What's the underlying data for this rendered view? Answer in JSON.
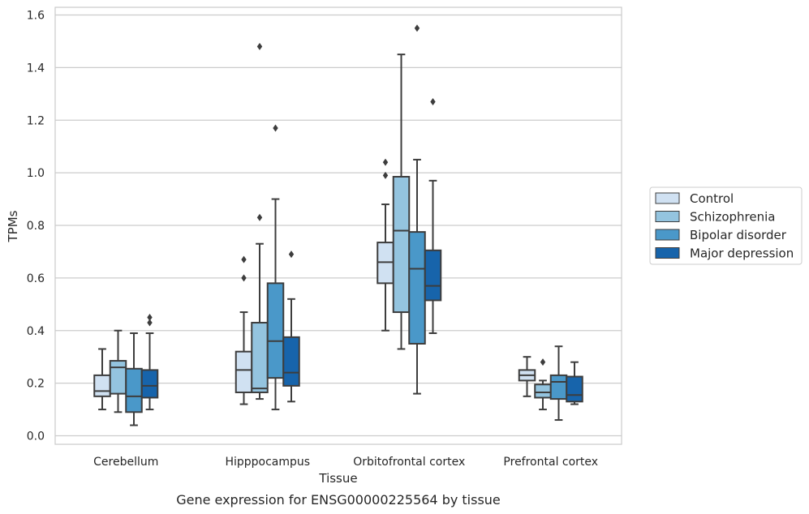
{
  "chart_data": {
    "type": "box",
    "xlabel": "Tissue",
    "ylabel": "TPMs",
    "caption": "Gene expression for ENSG00000225564 by tissue",
    "ylim": [
      -0.03,
      1.63
    ],
    "yticks": [
      "0.0",
      "0.2",
      "0.4",
      "0.6",
      "0.8",
      "1.0",
      "1.2",
      "1.4",
      "1.6"
    ],
    "grid": "horizontal",
    "legend_position": "right",
    "categories": [
      "Cerebellum",
      "Hipppocampus",
      "Orbitofrontal cortex",
      "Prefrontal cortex"
    ],
    "series": [
      {
        "name": "Control",
        "color": "#d0e1f2",
        "boxes": [
          {
            "whislo": 0.1,
            "q1": 0.15,
            "med": 0.17,
            "q3": 0.23,
            "whishi": 0.33,
            "fliers": []
          },
          {
            "whislo": 0.12,
            "q1": 0.165,
            "med": 0.25,
            "q3": 0.32,
            "whishi": 0.47,
            "fliers": [
              0.6,
              0.67
            ]
          },
          {
            "whislo": 0.4,
            "q1": 0.58,
            "med": 0.66,
            "q3": 0.735,
            "whishi": 0.88,
            "fliers": [
              0.99,
              1.04
            ]
          },
          {
            "whislo": 0.15,
            "q1": 0.21,
            "med": 0.23,
            "q3": 0.25,
            "whishi": 0.3,
            "fliers": []
          }
        ]
      },
      {
        "name": "Schizophrenia",
        "color": "#94c4df",
        "boxes": [
          {
            "whislo": 0.09,
            "q1": 0.16,
            "med": 0.26,
            "q3": 0.285,
            "whishi": 0.4,
            "fliers": []
          },
          {
            "whislo": 0.14,
            "q1": 0.165,
            "med": 0.18,
            "q3": 0.43,
            "whishi": 0.73,
            "fliers": [
              0.83,
              1.48
            ]
          },
          {
            "whislo": 0.33,
            "q1": 0.47,
            "med": 0.78,
            "q3": 0.985,
            "whishi": 1.45,
            "fliers": []
          },
          {
            "whislo": 0.1,
            "q1": 0.145,
            "med": 0.165,
            "q3": 0.195,
            "whishi": 0.21,
            "fliers": [
              0.28
            ]
          }
        ]
      },
      {
        "name": "Bipolar disorder",
        "color": "#4a98c9",
        "boxes": [
          {
            "whislo": 0.04,
            "q1": 0.09,
            "med": 0.15,
            "q3": 0.255,
            "whishi": 0.39,
            "fliers": []
          },
          {
            "whislo": 0.1,
            "q1": 0.22,
            "med": 0.36,
            "q3": 0.58,
            "whishi": 0.9,
            "fliers": [
              1.17
            ]
          },
          {
            "whislo": 0.16,
            "q1": 0.35,
            "med": 0.635,
            "q3": 0.775,
            "whishi": 1.05,
            "fliers": [
              1.55
            ]
          },
          {
            "whislo": 0.06,
            "q1": 0.14,
            "med": 0.205,
            "q3": 0.23,
            "whishi": 0.34,
            "fliers": []
          }
        ]
      },
      {
        "name": "Major depression",
        "color": "#1764ab",
        "boxes": [
          {
            "whislo": 0.1,
            "q1": 0.145,
            "med": 0.19,
            "q3": 0.25,
            "whishi": 0.39,
            "fliers": [
              0.43,
              0.45
            ]
          },
          {
            "whislo": 0.13,
            "q1": 0.19,
            "med": 0.24,
            "q3": 0.375,
            "whishi": 0.52,
            "fliers": [
              0.69
            ]
          },
          {
            "whislo": 0.39,
            "q1": 0.515,
            "med": 0.57,
            "q3": 0.705,
            "whishi": 0.97,
            "fliers": [
              1.27
            ]
          },
          {
            "whislo": 0.12,
            "q1": 0.13,
            "med": 0.155,
            "q3": 0.225,
            "whishi": 0.28,
            "fliers": []
          }
        ]
      }
    ]
  }
}
